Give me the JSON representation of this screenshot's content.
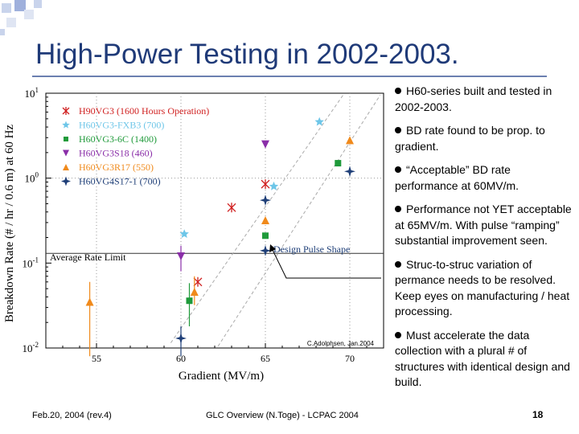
{
  "slide": {
    "title": "High-Power Testing in 2002-2003.",
    "footer_left": "Feb.20, 2004 (rev.4)",
    "footer_center": "GLC Overview (N.Toge) - LCPAC 2004",
    "page_number": "18"
  },
  "bullets": [
    "H60-series built and tested in 2002-2003.",
    "BD rate found to be prop. to gradient.",
    "“Acceptable” BD rate performance at 60MV/m.",
    "Performance not YET acceptable at 65MV/m. With pulse “ramping” substantial improvement seen.",
    "Struc-to-struc variation of permance needs to be resolved. Keep eyes on manufacturing / heat processing.",
    "Must accelerate the data collection with a plural # of structures with identical design and build."
  ],
  "colors": {
    "title": "#1f3a78",
    "h90vg3": "#d02020",
    "h60vg3_fxb3": "#6ec6e8",
    "h60vg3_6c": "#1f9a3a",
    "h60vg3s18": "#8a2ea8",
    "h60vg3r17": "#f08a1c",
    "h60vg4s17_1": "#1f3f78"
  },
  "chart_data": {
    "type": "scatter",
    "xlabel": "Gradient (MV/m)",
    "ylabel": "Breakdown Rate (# / hr / 0.6 m) at 60 Hz",
    "xlim": [
      52,
      72
    ],
    "ylim_log10": [
      -2,
      1
    ],
    "x_ticks": [
      "55",
      "60",
      "65",
      "70"
    ],
    "y_ticks": [
      {
        "base": "10",
        "exp": "1"
      },
      {
        "base": "10",
        "exp": "0"
      },
      {
        "base": "10",
        "exp": "-1"
      },
      {
        "base": "10",
        "exp": "-2"
      }
    ],
    "credit": "C.Adolphsen, Jan.2004",
    "average_rate_limit_label": "Average Rate Limit",
    "average_rate_limit_value": 0.13,
    "design_pulse_label": "Design Pulse Shape",
    "series": [
      {
        "name": "H90VG3 (1600 Hours Operation)",
        "marker": "x",
        "color": "#d02020",
        "points": [
          {
            "x": 61.0,
            "y": 0.06
          },
          {
            "x": 63.0,
            "y": 0.45
          },
          {
            "x": 65.0,
            "y": 0.85
          }
        ]
      },
      {
        "name": "H60VG3-FXB3 (700)",
        "marker": "star",
        "color": "#6ec6e8",
        "points": [
          {
            "x": 60.2,
            "y": 0.22
          },
          {
            "x": 65.5,
            "y": 0.8
          },
          {
            "x": 68.2,
            "y": 4.6
          }
        ]
      },
      {
        "name": "H60VG3-6C (1400)",
        "marker": "square",
        "color": "#1f9a3a",
        "points": [
          {
            "x": 60.5,
            "y": 0.036,
            "elo": 0.018,
            "ehi": 0.058
          },
          {
            "x": 65.0,
            "y": 0.21
          },
          {
            "x": 69.3,
            "y": 1.5
          }
        ]
      },
      {
        "name": "H60VG3S18 (460)",
        "marker": "triangle-down",
        "color": "#8a2ea8",
        "points": [
          {
            "x": 60.0,
            "y": 0.12,
            "elo": 0.08,
            "ehi": 0.16
          },
          {
            "x": 65.0,
            "y": 2.5
          }
        ]
      },
      {
        "name": "H60VG3R17 (550)",
        "marker": "triangle-up",
        "color": "#f08a1c",
        "points": [
          {
            "x": 54.6,
            "y": 0.035,
            "elo": 0.008,
            "ehi": 0.06
          },
          {
            "x": 60.8,
            "y": 0.046,
            "elo": 0.032,
            "ehi": 0.07
          },
          {
            "x": 65.0,
            "y": 0.32
          },
          {
            "x": 70.0,
            "y": 2.8
          }
        ]
      },
      {
        "name": "H60VG4S17-1 (700)",
        "marker": "plus-star",
        "color": "#1f3f78",
        "points": [
          {
            "x": 60.0,
            "y": 0.013,
            "elo": 0.008,
            "ehi": 0.018
          },
          {
            "x": 65.0,
            "y": 0.14
          },
          {
            "x": 65.0,
            "y": 0.55
          },
          {
            "x": 70.0,
            "y": 1.2
          }
        ]
      }
    ]
  }
}
